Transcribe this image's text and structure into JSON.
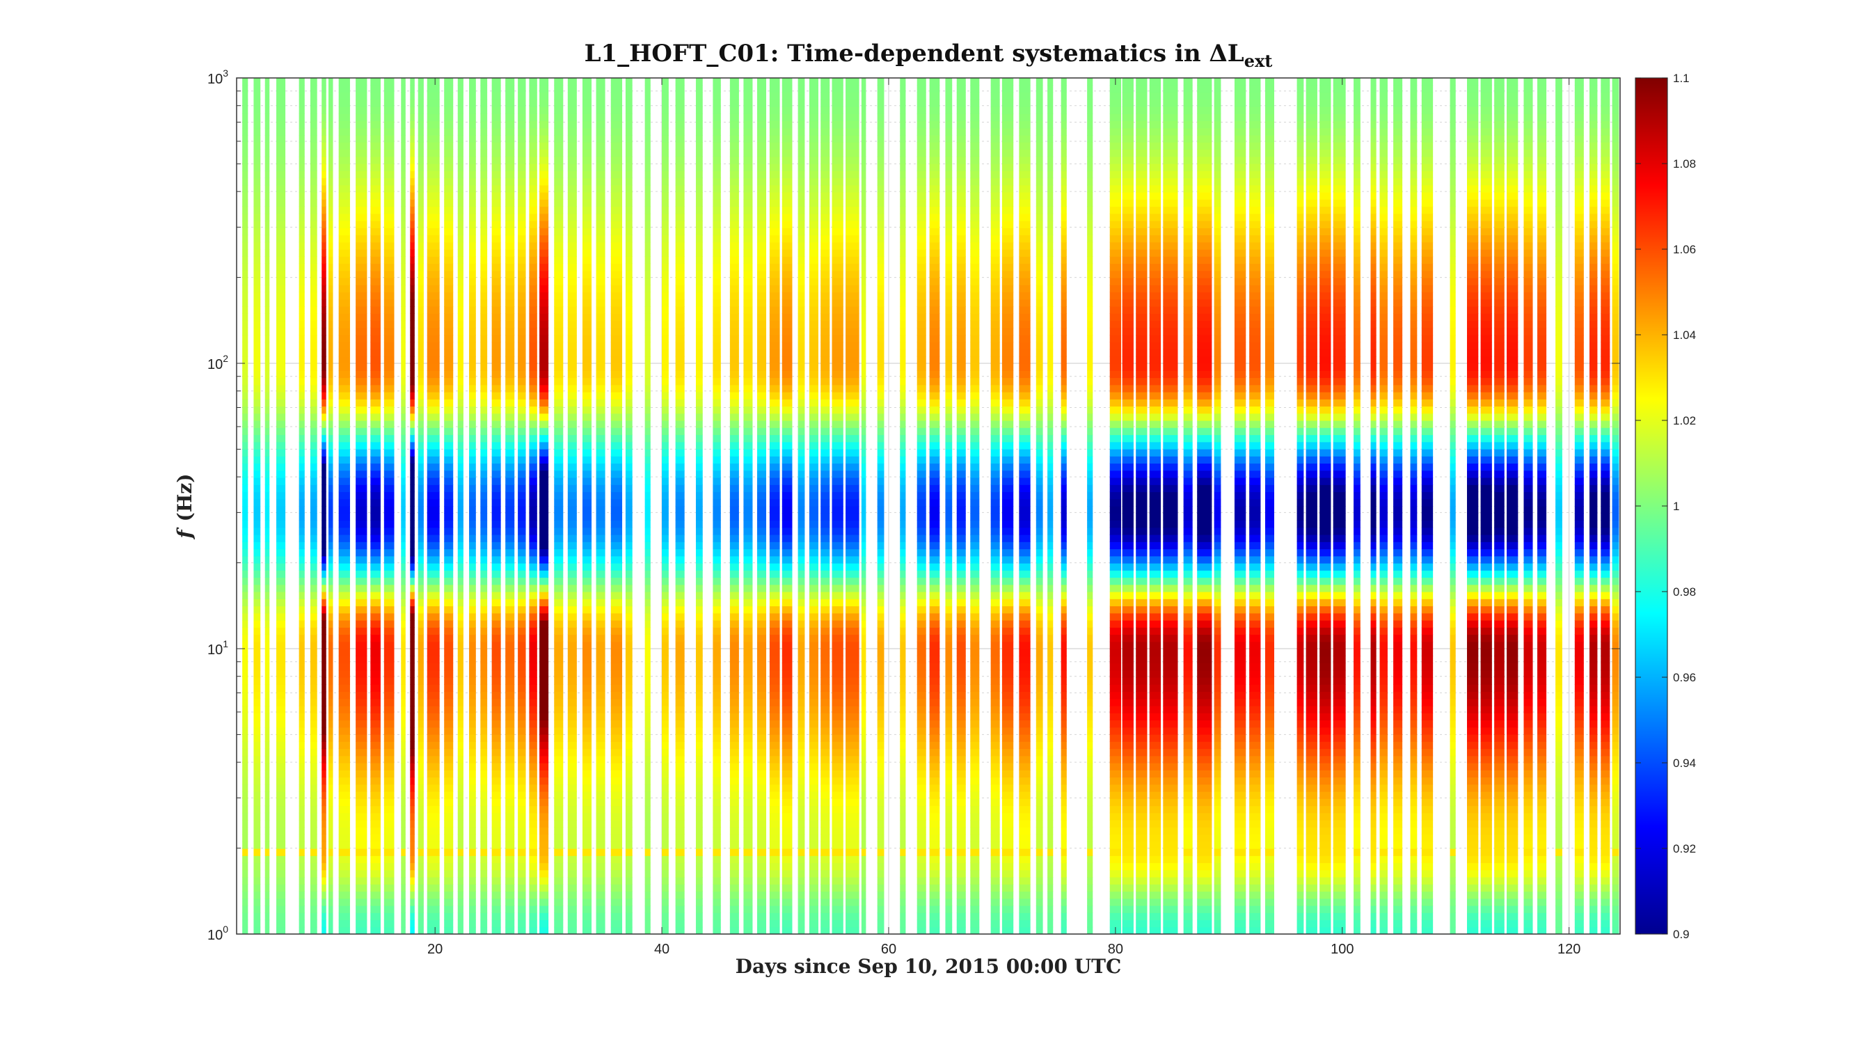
{
  "chart_data": {
    "type": "heatmap",
    "title": "L1_HOFT_C01: Time-dependent systematics in ΔL",
    "title_subscript": "ext",
    "xlabel": "Days since Sep 10, 2015 00:00 UTC",
    "ylabel_var": "f",
    "ylabel_unit": "(Hz)",
    "x_range": [
      2.5,
      124.5
    ],
    "y_range": [
      1,
      1000
    ],
    "y_scale": "log",
    "x_ticks": [
      20,
      40,
      60,
      80,
      100,
      120
    ],
    "x_tick_labels": [
      "20",
      "40",
      "60",
      "80",
      "100",
      "120"
    ],
    "y_ticks": [
      1,
      10,
      100,
      1000
    ],
    "y_tick_mantissa": "10",
    "y_tick_exponents": [
      "0",
      "1",
      "2",
      "3"
    ],
    "grid": true,
    "colormap": "jet",
    "color_range": [
      0.9,
      1.1
    ],
    "colorbar_ticks": [
      0.9,
      0.92,
      0.94,
      0.96,
      0.98,
      1,
      1.02,
      1.04,
      1.06,
      1.08,
      1.1
    ],
    "colorbar_tick_labels": [
      "0.9",
      "0.92",
      "0.94",
      "0.96",
      "0.98",
      "1",
      "1.02",
      "1.04",
      "1.06",
      "1.08",
      "1.1"
    ],
    "colorbar_position": "right",
    "frequency_profile_levels": {
      "f_1Hz": 0.99,
      "f_2Hz": 1.02,
      "f_10Hz": 1.06,
      "f_30Hz": 0.93,
      "f_100Hz": 1.045,
      "f_1000Hz": 1.0
    },
    "segments_day_range_and_amplitude": [
      [
        3.0,
        3.5,
        0.4
      ],
      [
        4.0,
        4.6,
        0.5
      ],
      [
        5.0,
        5.4,
        0.4
      ],
      [
        6.0,
        6.8,
        0.5
      ],
      [
        8.0,
        8.5,
        0.6
      ],
      [
        9.0,
        9.6,
        0.6
      ],
      [
        10.0,
        10.4,
        2.2
      ],
      [
        10.6,
        11.0,
        0.9
      ],
      [
        11.5,
        12.5,
        1.0
      ],
      [
        13.0,
        14.0,
        1.2
      ],
      [
        14.3,
        15.2,
        1.3
      ],
      [
        15.5,
        16.4,
        1.1
      ],
      [
        17.0,
        17.4,
        0.5
      ],
      [
        17.8,
        18.2,
        2.5
      ],
      [
        18.5,
        19.0,
        0.7
      ],
      [
        19.3,
        20.4,
        1.1
      ],
      [
        20.8,
        21.6,
        1.0
      ],
      [
        22.0,
        22.5,
        0.6
      ],
      [
        23.0,
        23.6,
        0.8
      ],
      [
        24.0,
        24.6,
        0.8
      ],
      [
        25.0,
        25.8,
        1.0
      ],
      [
        26.2,
        27.0,
        0.9
      ],
      [
        27.3,
        28.0,
        1.0
      ],
      [
        28.3,
        29.0,
        1.3
      ],
      [
        29.2,
        30.0,
        2.0
      ],
      [
        30.5,
        31.3,
        0.7
      ],
      [
        31.7,
        32.5,
        0.7
      ],
      [
        33.0,
        33.8,
        0.8
      ],
      [
        34.2,
        35.0,
        0.7
      ],
      [
        35.5,
        36.5,
        0.8
      ],
      [
        36.8,
        37.4,
        0.6
      ],
      [
        38.5,
        39.0,
        0.4
      ],
      [
        40.0,
        40.6,
        0.6
      ],
      [
        41.2,
        42.0,
        0.7
      ],
      [
        43.0,
        43.6,
        0.6
      ],
      [
        44.5,
        45.2,
        0.7
      ],
      [
        46.0,
        46.8,
        0.8
      ],
      [
        47.2,
        48.0,
        0.7
      ],
      [
        48.4,
        49.2,
        0.8
      ],
      [
        49.5,
        50.4,
        1.0
      ],
      [
        50.6,
        51.5,
        1.1
      ],
      [
        52.0,
        52.6,
        0.7
      ],
      [
        53.0,
        53.8,
        0.8
      ],
      [
        54.0,
        54.8,
        0.9
      ],
      [
        55.0,
        56.0,
        1.0
      ],
      [
        56.2,
        57.4,
        1.0
      ],
      [
        57.6,
        58.0,
        0.5
      ],
      [
        59.0,
        59.6,
        0.7
      ],
      [
        61.0,
        61.5,
        0.6
      ],
      [
        62.5,
        63.3,
        0.9
      ],
      [
        63.6,
        64.5,
        1.1
      ],
      [
        65.0,
        65.6,
        0.8
      ],
      [
        66.0,
        66.8,
        1.0
      ],
      [
        67.2,
        68.0,
        0.8
      ],
      [
        69.0,
        69.8,
        0.9
      ],
      [
        70.0,
        71.0,
        1.1
      ],
      [
        71.5,
        72.5,
        1.2
      ],
      [
        73.0,
        73.6,
        0.7
      ],
      [
        74.0,
        74.5,
        0.6
      ],
      [
        75.2,
        75.7,
        1.2
      ],
      [
        77.5,
        78.0,
        0.6
      ],
      [
        79.5,
        80.5,
        1.4
      ],
      [
        80.6,
        81.6,
        1.5
      ],
      [
        81.8,
        82.8,
        1.5
      ],
      [
        83.0,
        84.0,
        1.5
      ],
      [
        84.2,
        85.5,
        1.5
      ],
      [
        86.0,
        86.8,
        1.2
      ],
      [
        87.2,
        88.5,
        1.6
      ],
      [
        88.7,
        89.3,
        1.1
      ],
      [
        90.5,
        91.5,
        1.3
      ],
      [
        91.8,
        92.8,
        1.3
      ],
      [
        93.2,
        94.0,
        1.1
      ],
      [
        96.0,
        96.6,
        1.4
      ],
      [
        96.8,
        97.8,
        1.5
      ],
      [
        98.0,
        99.0,
        1.6
      ],
      [
        99.2,
        100.3,
        1.5
      ],
      [
        101.0,
        101.6,
        1.2
      ],
      [
        102.5,
        103.0,
        1.5
      ],
      [
        103.3,
        104.0,
        1.2
      ],
      [
        104.5,
        105.3,
        1.3
      ],
      [
        106.0,
        106.6,
        1.2
      ],
      [
        107.0,
        108.0,
        1.4
      ],
      [
        109.5,
        110.0,
        0.6
      ],
      [
        111.0,
        112.0,
        1.6
      ],
      [
        112.2,
        113.2,
        1.6
      ],
      [
        113.4,
        114.3,
        1.5
      ],
      [
        114.5,
        115.5,
        1.6
      ],
      [
        116.0,
        116.8,
        1.4
      ],
      [
        117.2,
        118.0,
        1.4
      ],
      [
        118.8,
        119.4,
        0.5
      ],
      [
        120.5,
        121.3,
        1.3
      ],
      [
        121.8,
        122.5,
        1.5
      ],
      [
        122.8,
        123.6,
        1.5
      ],
      [
        123.8,
        124.4,
        0.8
      ]
    ]
  }
}
